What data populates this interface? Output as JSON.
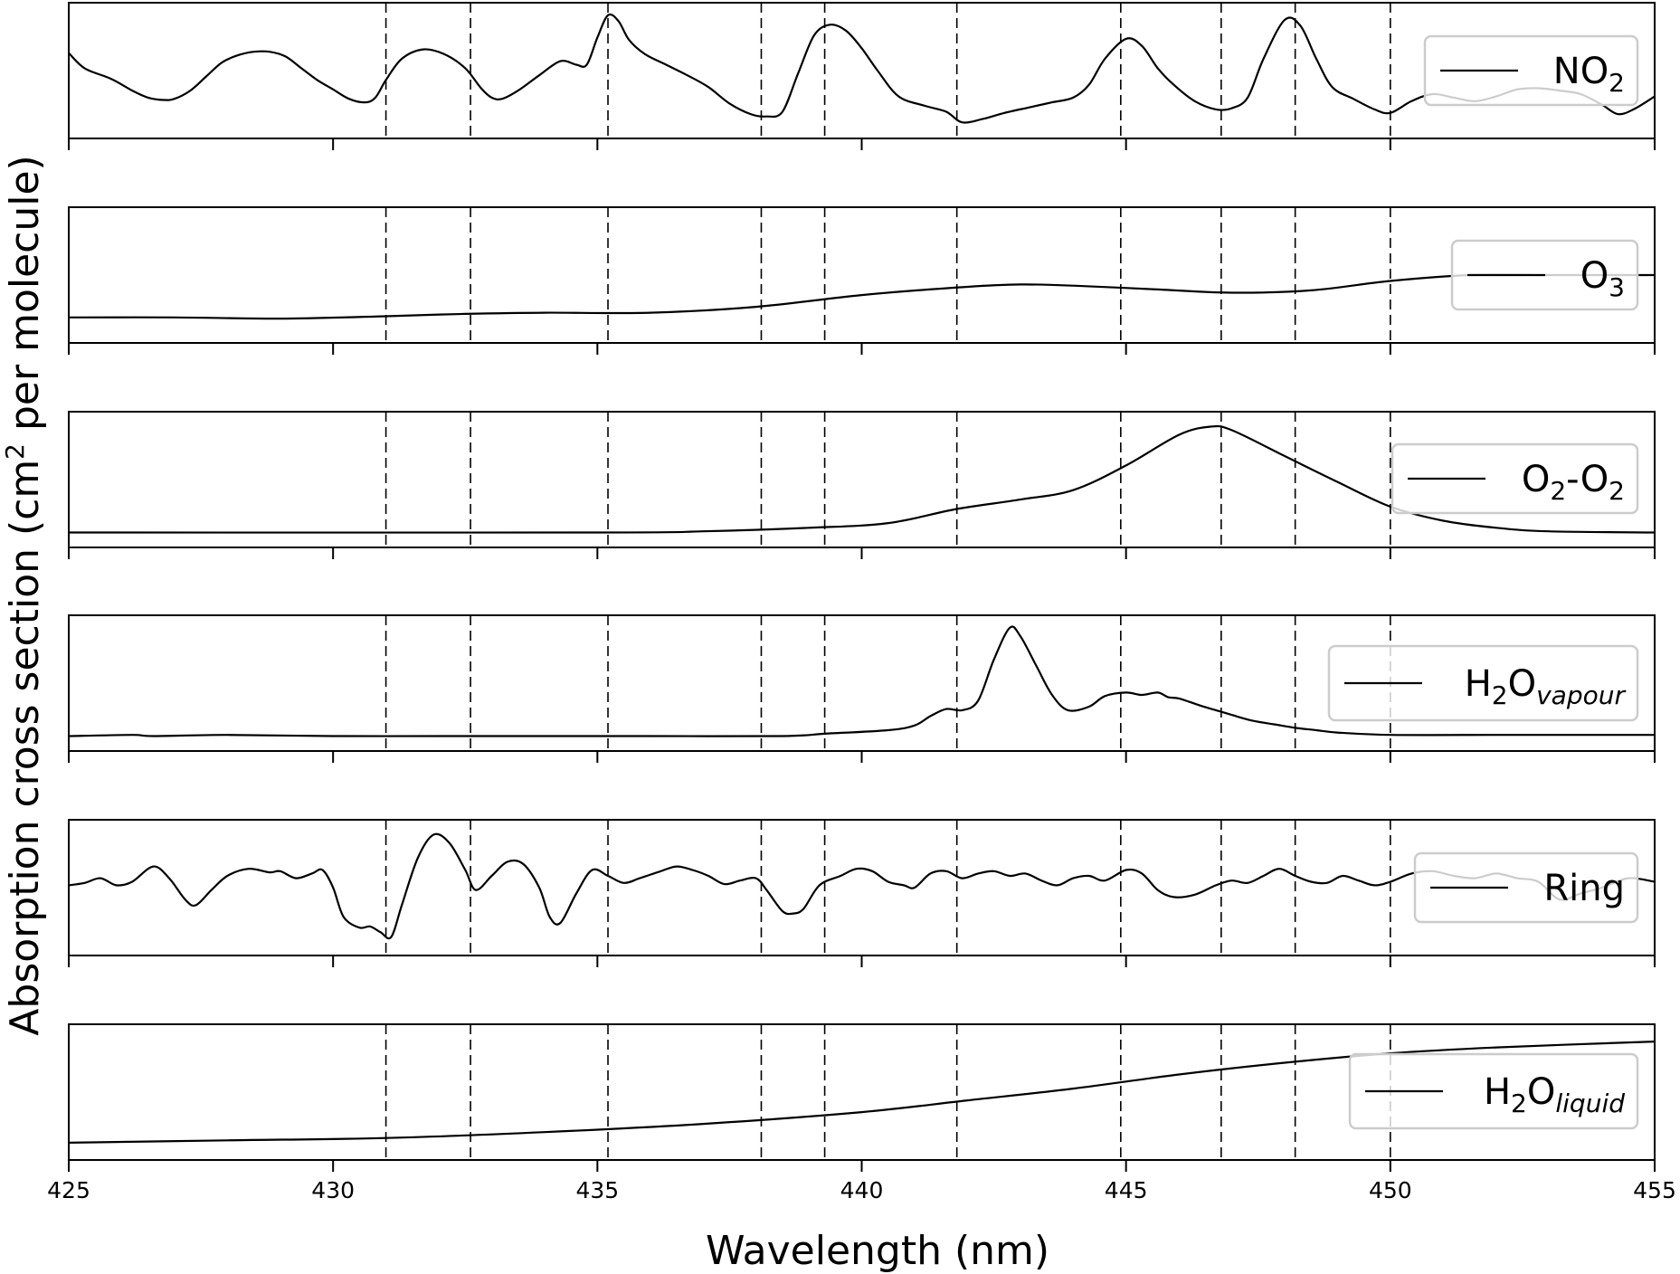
{
  "chart_data": {
    "type": "line",
    "xlabel": "Wavelength (nm)",
    "ylabel": "Absorption cross section (cm² per molecule)",
    "ylabel_parts": {
      "pre": "Absorption cross section (cm",
      "sup": "2",
      "post": " per molecule)"
    },
    "xlim": [
      425,
      455
    ],
    "x_ticks": [
      425,
      430,
      435,
      440,
      445,
      450,
      455
    ],
    "x_tick_labels": [
      "425",
      "430",
      "435",
      "440",
      "445",
      "450",
      "455"
    ],
    "y_ticks_shown": false,
    "vertical_dashed_lines": [
      431.0,
      432.6,
      435.2,
      438.1,
      439.3,
      441.8,
      444.9,
      446.8,
      448.2,
      450.0
    ],
    "legend_placement": "right",
    "ylim": [
      0,
      1
    ],
    "series": [
      {
        "legend": {
          "main": "NO",
          "sub": "2",
          "sub_italic": false,
          "tail": ""
        },
        "points": [
          [
            425.0,
            0.65
          ],
          [
            425.3,
            0.52
          ],
          [
            425.8,
            0.43
          ],
          [
            426.2,
            0.33
          ],
          [
            426.5,
            0.27
          ],
          [
            426.8,
            0.25
          ],
          [
            427.0,
            0.26
          ],
          [
            427.3,
            0.33
          ],
          [
            427.6,
            0.45
          ],
          [
            427.9,
            0.57
          ],
          [
            428.2,
            0.63
          ],
          [
            428.5,
            0.66
          ],
          [
            428.8,
            0.66
          ],
          [
            429.1,
            0.62
          ],
          [
            429.4,
            0.52
          ],
          [
            429.7,
            0.42
          ],
          [
            430.0,
            0.34
          ],
          [
            430.3,
            0.26
          ],
          [
            430.6,
            0.23
          ],
          [
            430.8,
            0.27
          ],
          [
            431.0,
            0.42
          ],
          [
            431.3,
            0.6
          ],
          [
            431.7,
            0.68
          ],
          [
            432.1,
            0.64
          ],
          [
            432.5,
            0.52
          ],
          [
            432.8,
            0.35
          ],
          [
            433.0,
            0.27
          ],
          [
            433.2,
            0.26
          ],
          [
            433.5,
            0.33
          ],
          [
            433.9,
            0.46
          ],
          [
            434.3,
            0.58
          ],
          [
            434.6,
            0.55
          ],
          [
            434.8,
            0.55
          ],
          [
            435.0,
            0.78
          ],
          [
            435.2,
            0.97
          ],
          [
            435.4,
            0.92
          ],
          [
            435.6,
            0.76
          ],
          [
            435.9,
            0.64
          ],
          [
            436.3,
            0.55
          ],
          [
            436.7,
            0.46
          ],
          [
            437.1,
            0.36
          ],
          [
            437.5,
            0.22
          ],
          [
            437.9,
            0.13
          ],
          [
            438.2,
            0.11
          ],
          [
            438.5,
            0.15
          ],
          [
            438.8,
            0.48
          ],
          [
            439.1,
            0.8
          ],
          [
            439.4,
            0.89
          ],
          [
            439.7,
            0.84
          ],
          [
            440.0,
            0.69
          ],
          [
            440.3,
            0.5
          ],
          [
            440.7,
            0.28
          ],
          [
            441.2,
            0.2
          ],
          [
            441.6,
            0.15
          ],
          [
            441.9,
            0.06
          ],
          [
            442.3,
            0.09
          ],
          [
            442.7,
            0.14
          ],
          [
            443.2,
            0.19
          ],
          [
            443.6,
            0.23
          ],
          [
            444.0,
            0.27
          ],
          [
            444.3,
            0.38
          ],
          [
            444.6,
            0.6
          ],
          [
            445.0,
            0.77
          ],
          [
            445.3,
            0.71
          ],
          [
            445.6,
            0.52
          ],
          [
            445.9,
            0.38
          ],
          [
            446.3,
            0.24
          ],
          [
            446.7,
            0.17
          ],
          [
            447.0,
            0.18
          ],
          [
            447.3,
            0.27
          ],
          [
            447.6,
            0.6
          ],
          [
            448.0,
            0.93
          ],
          [
            448.3,
            0.88
          ],
          [
            448.6,
            0.6
          ],
          [
            448.9,
            0.36
          ],
          [
            449.3,
            0.26
          ],
          [
            449.7,
            0.17
          ],
          [
            450.0,
            0.14
          ],
          [
            450.4,
            0.24
          ],
          [
            450.8,
            0.3
          ],
          [
            451.2,
            0.27
          ],
          [
            451.6,
            0.24
          ],
          [
            452.0,
            0.28
          ],
          [
            452.4,
            0.34
          ],
          [
            452.8,
            0.35
          ],
          [
            453.2,
            0.33
          ],
          [
            453.6,
            0.3
          ],
          [
            454.0,
            0.21
          ],
          [
            454.3,
            0.13
          ],
          [
            454.6,
            0.17
          ],
          [
            455.0,
            0.28
          ]
        ]
      },
      {
        "legend": {
          "main": "O",
          "sub": "3",
          "sub_italic": false,
          "tail": ""
        },
        "points": [
          [
            425.0,
            0.14
          ],
          [
            427.0,
            0.14
          ],
          [
            429.0,
            0.13
          ],
          [
            431.0,
            0.15
          ],
          [
            432.5,
            0.17
          ],
          [
            434.0,
            0.18
          ],
          [
            436.0,
            0.18
          ],
          [
            438.0,
            0.23
          ],
          [
            440.0,
            0.33
          ],
          [
            442.0,
            0.4
          ],
          [
            443.0,
            0.42
          ],
          [
            444.0,
            0.41
          ],
          [
            445.5,
            0.38
          ],
          [
            447.0,
            0.35
          ],
          [
            448.5,
            0.37
          ],
          [
            450.0,
            0.45
          ],
          [
            451.5,
            0.5
          ],
          [
            453.0,
            0.5
          ],
          [
            455.0,
            0.5
          ]
        ]
      },
      {
        "legend": {
          "main": "O",
          "sub": "2",
          "sub_italic": false,
          "tail": "-O",
          "sub2": "2"
        },
        "points": [
          [
            425.0,
            0.05
          ],
          [
            435.0,
            0.05
          ],
          [
            437.0,
            0.06
          ],
          [
            439.0,
            0.09
          ],
          [
            440.5,
            0.13
          ],
          [
            441.8,
            0.25
          ],
          [
            443.0,
            0.33
          ],
          [
            444.0,
            0.41
          ],
          [
            445.0,
            0.62
          ],
          [
            446.0,
            0.88
          ],
          [
            446.6,
            0.95
          ],
          [
            447.0,
            0.92
          ],
          [
            448.0,
            0.7
          ],
          [
            449.0,
            0.48
          ],
          [
            450.0,
            0.27
          ],
          [
            451.0,
            0.15
          ],
          [
            452.0,
            0.09
          ],
          [
            453.0,
            0.06
          ],
          [
            455.0,
            0.05
          ]
        ]
      },
      {
        "legend": {
          "main": "H",
          "sub": "2",
          "sub_italic": false,
          "tail": "O",
          "sub2": "vapour",
          "sub2_italic": true
        },
        "points": [
          [
            425.0,
            0.05
          ],
          [
            426.2,
            0.06
          ],
          [
            426.6,
            0.05
          ],
          [
            428.0,
            0.06
          ],
          [
            430.0,
            0.05
          ],
          [
            432.0,
            0.05
          ],
          [
            434.0,
            0.05
          ],
          [
            436.0,
            0.05
          ],
          [
            438.5,
            0.05
          ],
          [
            439.3,
            0.07
          ],
          [
            440.5,
            0.1
          ],
          [
            441.0,
            0.14
          ],
          [
            441.3,
            0.22
          ],
          [
            441.6,
            0.28
          ],
          [
            441.9,
            0.27
          ],
          [
            442.2,
            0.35
          ],
          [
            442.5,
            0.7
          ],
          [
            442.8,
            0.97
          ],
          [
            443.0,
            0.9
          ],
          [
            443.3,
            0.65
          ],
          [
            443.6,
            0.4
          ],
          [
            443.9,
            0.27
          ],
          [
            444.3,
            0.3
          ],
          [
            444.6,
            0.39
          ],
          [
            445.0,
            0.42
          ],
          [
            445.3,
            0.4
          ],
          [
            445.6,
            0.42
          ],
          [
            445.8,
            0.38
          ],
          [
            446.0,
            0.37
          ],
          [
            446.4,
            0.31
          ],
          [
            446.7,
            0.27
          ],
          [
            447.0,
            0.23
          ],
          [
            447.4,
            0.18
          ],
          [
            447.8,
            0.15
          ],
          [
            448.2,
            0.12
          ],
          [
            448.6,
            0.1
          ],
          [
            449.0,
            0.08
          ],
          [
            450.0,
            0.06
          ],
          [
            452.0,
            0.06
          ],
          [
            453.5,
            0.06
          ],
          [
            455.0,
            0.06
          ]
        ]
      },
      {
        "legend": {
          "main": "Ring",
          "sub": "",
          "sub_italic": false,
          "tail": ""
        },
        "points": [
          [
            425.0,
            0.52
          ],
          [
            425.3,
            0.54
          ],
          [
            425.6,
            0.58
          ],
          [
            425.9,
            0.52
          ],
          [
            426.2,
            0.55
          ],
          [
            426.6,
            0.68
          ],
          [
            426.9,
            0.58
          ],
          [
            427.2,
            0.4
          ],
          [
            427.4,
            0.35
          ],
          [
            427.7,
            0.48
          ],
          [
            428.0,
            0.6
          ],
          [
            428.4,
            0.66
          ],
          [
            428.8,
            0.63
          ],
          [
            429.0,
            0.64
          ],
          [
            429.3,
            0.58
          ],
          [
            429.6,
            0.62
          ],
          [
            429.8,
            0.65
          ],
          [
            430.0,
            0.5
          ],
          [
            430.2,
            0.25
          ],
          [
            430.5,
            0.16
          ],
          [
            430.7,
            0.17
          ],
          [
            430.9,
            0.12
          ],
          [
            431.1,
            0.08
          ],
          [
            431.3,
            0.35
          ],
          [
            431.6,
            0.75
          ],
          [
            431.9,
            0.95
          ],
          [
            432.2,
            0.88
          ],
          [
            432.5,
            0.65
          ],
          [
            432.7,
            0.48
          ],
          [
            433.0,
            0.6
          ],
          [
            433.3,
            0.72
          ],
          [
            433.6,
            0.7
          ],
          [
            433.9,
            0.5
          ],
          [
            434.1,
            0.25
          ],
          [
            434.3,
            0.2
          ],
          [
            434.6,
            0.45
          ],
          [
            434.9,
            0.65
          ],
          [
            435.2,
            0.6
          ],
          [
            435.5,
            0.54
          ],
          [
            435.8,
            0.58
          ],
          [
            436.2,
            0.64
          ],
          [
            436.5,
            0.68
          ],
          [
            436.8,
            0.65
          ],
          [
            437.1,
            0.6
          ],
          [
            437.4,
            0.53
          ],
          [
            437.7,
            0.56
          ],
          [
            438.0,
            0.58
          ],
          [
            438.2,
            0.48
          ],
          [
            438.5,
            0.3
          ],
          [
            438.7,
            0.28
          ],
          [
            438.9,
            0.32
          ],
          [
            439.2,
            0.52
          ],
          [
            439.6,
            0.6
          ],
          [
            439.9,
            0.66
          ],
          [
            440.2,
            0.64
          ],
          [
            440.5,
            0.55
          ],
          [
            440.8,
            0.52
          ],
          [
            441.0,
            0.5
          ],
          [
            441.3,
            0.62
          ],
          [
            441.6,
            0.64
          ],
          [
            441.9,
            0.58
          ],
          [
            442.2,
            0.62
          ],
          [
            442.5,
            0.64
          ],
          [
            442.8,
            0.6
          ],
          [
            443.1,
            0.62
          ],
          [
            443.4,
            0.56
          ],
          [
            443.7,
            0.52
          ],
          [
            444.0,
            0.58
          ],
          [
            444.3,
            0.6
          ],
          [
            444.6,
            0.56
          ],
          [
            445.0,
            0.65
          ],
          [
            445.3,
            0.62
          ],
          [
            445.6,
            0.48
          ],
          [
            445.9,
            0.42
          ],
          [
            446.3,
            0.44
          ],
          [
            446.7,
            0.52
          ],
          [
            447.0,
            0.56
          ],
          [
            447.3,
            0.54
          ],
          [
            447.6,
            0.6
          ],
          [
            447.9,
            0.66
          ],
          [
            448.2,
            0.6
          ],
          [
            448.5,
            0.55
          ],
          [
            448.8,
            0.54
          ],
          [
            449.1,
            0.6
          ],
          [
            449.4,
            0.56
          ],
          [
            449.7,
            0.52
          ],
          [
            450.0,
            0.55
          ],
          [
            450.4,
            0.62
          ],
          [
            450.8,
            0.64
          ],
          [
            451.2,
            0.6
          ],
          [
            451.6,
            0.58
          ],
          [
            452.0,
            0.62
          ],
          [
            452.4,
            0.58
          ],
          [
            452.8,
            0.55
          ],
          [
            453.2,
            0.4
          ],
          [
            453.6,
            0.45
          ],
          [
            454.0,
            0.5
          ],
          [
            454.5,
            0.58
          ],
          [
            455.0,
            0.55
          ]
        ]
      },
      {
        "legend": {
          "main": "H",
          "sub": "2",
          "sub_italic": false,
          "tail": "O",
          "sub2": "liquid",
          "sub2_italic": true
        },
        "points": [
          [
            425.0,
            0.07
          ],
          [
            428.0,
            0.09
          ],
          [
            431.0,
            0.11
          ],
          [
            434.0,
            0.16
          ],
          [
            437.0,
            0.23
          ],
          [
            440.0,
            0.33
          ],
          [
            442.0,
            0.43
          ],
          [
            444.0,
            0.53
          ],
          [
            446.0,
            0.65
          ],
          [
            448.0,
            0.75
          ],
          [
            450.0,
            0.83
          ],
          [
            452.0,
            0.88
          ],
          [
            455.0,
            0.93
          ]
        ]
      }
    ]
  }
}
